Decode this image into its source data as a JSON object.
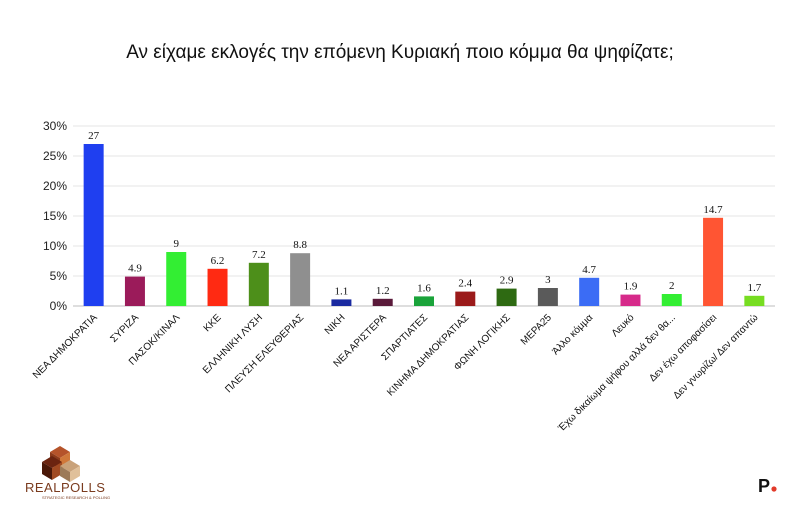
{
  "chart_data": {
    "type": "bar",
    "title": "Αν είχαμε εκλογές την επόμενη Κυριακή ποιο κόμμα θα ψηφίζατε;",
    "categories": [
      "ΝΕΑ ΔΗΜΟΚΡΑΤΙΑ",
      "ΣΥΡΙΖΑ",
      "ΠΑΣΟΚ/ΚΙΝΑΛ",
      "ΚΚΕ",
      "ΕΛΛΗΝΙΚΗ ΛΥΣΗ",
      "ΠΛΕΥΣΗ ΕΛΕΥΘΕΡΙΑΣ",
      "ΝΙΚΗ",
      "ΝΕΑ ΑΡΙΣΤΕΡΑ",
      "ΣΠΑΡΤΙΑΤΕΣ",
      "ΚΙΝΗΜΑ ΔΗΜΟΚΡΑΤΙΑΣ",
      "ΦΩΝΗ ΛΟΓΙΚΗΣ",
      "ΜΕΡΑ25",
      "Άλλο κόμμα",
      "Λευκό",
      "Έχω δικαίωμα ψήφου αλλά δεν θα...",
      "Δεν έχω αποφασίσει",
      "Δεν γνωρίζω/ Δεν απαντώ"
    ],
    "values": [
      27,
      4.9,
      9,
      6.2,
      7.2,
      8.8,
      1.1,
      1.2,
      1.6,
      2.4,
      2.9,
      3,
      4.7,
      1.9,
      2,
      14.7,
      1.7
    ],
    "value_labels": [
      "27",
      "4.9",
      "9",
      "6.2",
      "7.2",
      "8.8",
      "1.1",
      "1.2",
      "1.6",
      "2.4",
      "2.9",
      "3",
      "4.7",
      "1.9",
      "2",
      "14.7",
      "1.7"
    ],
    "colors": [
      "#1f3ff0",
      "#9b1b5a",
      "#33ee33",
      "#ff2a12",
      "#4d8f1a",
      "#8f8f8f",
      "#1a2aa0",
      "#5a1a3a",
      "#1aa33a",
      "#9b1a1a",
      "#2e6a12",
      "#5a5a5a",
      "#3b6cf5",
      "#d62a8a",
      "#33ee33",
      "#ff5533",
      "#77dd22"
    ],
    "ylim": [
      0,
      30
    ],
    "yticks": [
      0,
      5,
      10,
      15,
      20,
      25,
      30
    ],
    "ytick_labels": [
      "0%",
      "5%",
      "10%",
      "15%",
      "20%",
      "25%",
      "30%"
    ],
    "grid": true,
    "xlabel": "",
    "ylabel": ""
  },
  "logo": {
    "text": "REALPOLLS",
    "subtext": "STRATEGIC RESEARCH & POLLING"
  },
  "brand_mark": {
    "text": "P",
    "dot_color": "#e23a2a"
  }
}
